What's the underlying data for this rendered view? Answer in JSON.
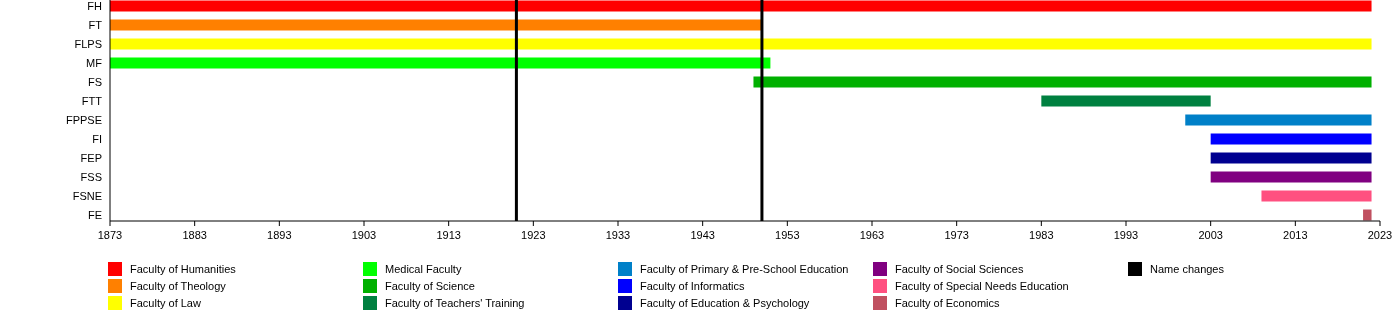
{
  "chart_data": {
    "type": "bar",
    "orientation": "horizontal",
    "categories": [
      "FH",
      "FT",
      "FLPS",
      "MF",
      "FS",
      "FTT",
      "FPPSE",
      "FI",
      "FEP",
      "FSS",
      "FSNE",
      "FE"
    ],
    "series": [
      {
        "name": "Faculty of Humanities",
        "color": "#ff0000",
        "base": [
          1873,
          null,
          null,
          null,
          null,
          null,
          null,
          null,
          null,
          null,
          null,
          null
        ],
        "values": [
          149,
          null,
          null,
          null,
          null,
          null,
          null,
          null,
          null,
          null,
          null,
          null
        ]
      },
      {
        "name": "Faculty of Theology",
        "color": "#ff8000",
        "base": [
          null,
          1873,
          null,
          null,
          null,
          null,
          null,
          null,
          null,
          null,
          null,
          null
        ],
        "values": [
          null,
          77,
          null,
          null,
          null,
          null,
          null,
          null,
          null,
          null,
          null,
          null
        ]
      },
      {
        "name": "Faculty of Law",
        "color": "#ffff00",
        "base": [
          null,
          null,
          1873,
          null,
          null,
          null,
          null,
          null,
          null,
          null,
          null,
          null
        ],
        "values": [
          null,
          null,
          149,
          null,
          null,
          null,
          null,
          null,
          null,
          null,
          null,
          null
        ]
      },
      {
        "name": "Medical Faculty",
        "color": "#00ff00",
        "base": [
          null,
          null,
          null,
          1873,
          null,
          null,
          null,
          null,
          null,
          null,
          null,
          null
        ],
        "values": [
          null,
          null,
          null,
          78,
          null,
          null,
          null,
          null,
          null,
          null,
          null,
          null
        ]
      },
      {
        "name": "Faculty of Science",
        "color": "#00b000",
        "base": [
          null,
          null,
          null,
          null,
          1949,
          null,
          null,
          null,
          null,
          null,
          null,
          null
        ],
        "values": [
          null,
          null,
          null,
          null,
          73,
          null,
          null,
          null,
          null,
          null,
          null,
          null
        ]
      },
      {
        "name": "Faculty of Teachers' Training",
        "color": "#008040",
        "base": [
          null,
          null,
          null,
          null,
          null,
          1983,
          null,
          null,
          null,
          null,
          null,
          null
        ],
        "values": [
          null,
          null,
          null,
          null,
          null,
          20,
          null,
          null,
          null,
          null,
          null,
          null
        ]
      },
      {
        "name": "Faculty of Primary & Pre-School Education",
        "color": "#0080c8",
        "base": [
          null,
          null,
          null,
          null,
          null,
          null,
          2000,
          null,
          null,
          null,
          null,
          null
        ],
        "values": [
          null,
          null,
          null,
          null,
          null,
          null,
          22,
          null,
          null,
          null,
          null,
          null
        ]
      },
      {
        "name": "Faculty of Informatics",
        "color": "#0000ff",
        "base": [
          null,
          null,
          null,
          null,
          null,
          null,
          null,
          2003,
          null,
          null,
          null,
          null
        ],
        "values": [
          null,
          null,
          null,
          null,
          null,
          null,
          null,
          19,
          null,
          null,
          null,
          null
        ]
      },
      {
        "name": "Faculty of Education & Psychology",
        "color": "#000090",
        "base": [
          null,
          null,
          null,
          null,
          null,
          null,
          null,
          null,
          2003,
          null,
          null,
          null
        ],
        "values": [
          null,
          null,
          null,
          null,
          null,
          null,
          null,
          null,
          19,
          null,
          null,
          null
        ]
      },
      {
        "name": "Faculty of Social Sciences",
        "color": "#800080",
        "base": [
          null,
          null,
          null,
          null,
          null,
          null,
          null,
          null,
          null,
          2003,
          null,
          null
        ],
        "values": [
          null,
          null,
          null,
          null,
          null,
          null,
          null,
          null,
          null,
          19,
          null,
          null
        ]
      },
      {
        "name": "Faculty of Special Needs Education",
        "color": "#ff5080",
        "base": [
          null,
          null,
          null,
          null,
          null,
          null,
          null,
          null,
          null,
          null,
          2009,
          null
        ],
        "values": [
          null,
          null,
          null,
          null,
          null,
          null,
          null,
          null,
          null,
          null,
          13,
          null
        ]
      },
      {
        "name": "Faculty of Economics",
        "color": "#c05060",
        "base": [
          null,
          null,
          null,
          null,
          null,
          null,
          null,
          null,
          null,
          null,
          null,
          2021
        ],
        "values": [
          null,
          null,
          null,
          null,
          null,
          null,
          null,
          null,
          null,
          null,
          null,
          1
        ]
      }
    ],
    "ref_lines": [
      {
        "axis": "x",
        "value": 1921,
        "label": "Name changes",
        "color": "#000000"
      },
      {
        "axis": "x",
        "value": 1950,
        "color": "#000000"
      }
    ],
    "xlim": [
      1873,
      2023
    ],
    "xticks": [
      1873,
      1883,
      1893,
      1903,
      1913,
      1923,
      1933,
      1943,
      1953,
      1963,
      1973,
      1983,
      1993,
      2003,
      2013,
      2023
    ],
    "grid": false,
    "legend": "bottom"
  }
}
